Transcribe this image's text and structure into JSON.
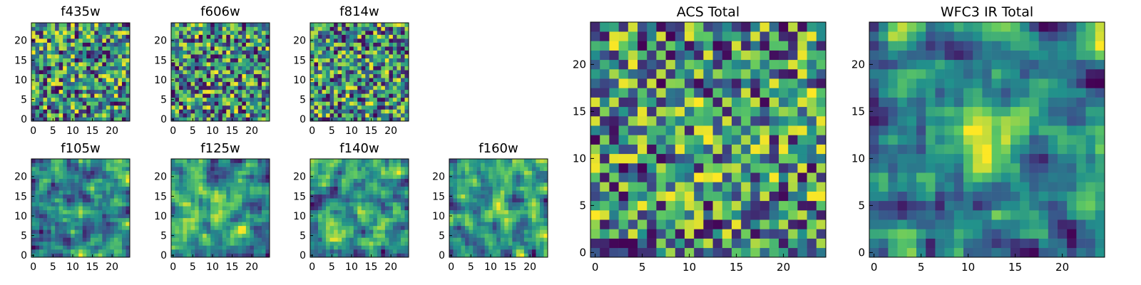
{
  "figure": {
    "colormap": "viridis",
    "colormap_stops": [
      "#440154",
      "#3b528b",
      "#21918c",
      "#5ec962",
      "#fde725"
    ]
  },
  "chart_data": [
    {
      "type": "heatmap",
      "title": "f435w",
      "xlim": [
        0,
        25
      ],
      "ylim": [
        0,
        25
      ],
      "grid_size": 25,
      "x_ticks": [
        0,
        5,
        10,
        15,
        20
      ],
      "y_ticks": [
        0,
        5,
        10,
        15,
        20
      ],
      "xlabel": "",
      "ylabel": "",
      "grid": false,
      "origin": "lower",
      "value_range": [
        0,
        1
      ],
      "smoothness": 0,
      "seed": 11,
      "hotspots": [],
      "darkspots": []
    },
    {
      "type": "heatmap",
      "title": "f606w",
      "xlim": [
        0,
        25
      ],
      "ylim": [
        0,
        25
      ],
      "grid_size": 25,
      "x_ticks": [
        0,
        5,
        10,
        15,
        20
      ],
      "y_ticks": [
        0,
        5,
        10,
        15,
        20
      ],
      "xlabel": "",
      "ylabel": "",
      "grid": false,
      "origin": "lower",
      "value_range": [
        0,
        1
      ],
      "smoothness": 0,
      "seed": 23,
      "hotspots": [
        [
          12,
          12,
          1.5,
          0.15
        ]
      ],
      "darkspots": []
    },
    {
      "type": "heatmap",
      "title": "f814w",
      "xlim": [
        0,
        25
      ],
      "ylim": [
        0,
        25
      ],
      "grid_size": 25,
      "x_ticks": [
        0,
        5,
        10,
        15,
        20
      ],
      "y_ticks": [
        0,
        5,
        10,
        15,
        20
      ],
      "xlabel": "",
      "ylabel": "",
      "grid": false,
      "origin": "lower",
      "value_range": [
        0,
        1
      ],
      "smoothness": 0,
      "seed": 37,
      "hotspots": [],
      "darkspots": []
    },
    {
      "type": "heatmap",
      "title": "f105w",
      "xlim": [
        0,
        25
      ],
      "ylim": [
        0,
        25
      ],
      "grid_size": 25,
      "x_ticks": [
        0,
        5,
        10,
        15,
        20
      ],
      "y_ticks": [
        0,
        5,
        10,
        15,
        20
      ],
      "xlabel": "",
      "ylabel": "",
      "grid": false,
      "origin": "lower",
      "value_range": [
        0,
        1
      ],
      "smoothness": 1,
      "seed": 41,
      "hotspots": [
        [
          13,
          10,
          2,
          0.25
        ],
        [
          23,
          22,
          2,
          0.2
        ]
      ],
      "darkspots": []
    },
    {
      "type": "heatmap",
      "title": "f125w",
      "xlim": [
        0,
        25
      ],
      "ylim": [
        0,
        25
      ],
      "grid_size": 25,
      "x_ticks": [
        0,
        5,
        10,
        15,
        20
      ],
      "y_ticks": [
        0,
        5,
        10,
        15,
        20
      ],
      "xlabel": "",
      "ylabel": "",
      "grid": false,
      "origin": "lower",
      "value_range": [
        0,
        1
      ],
      "smoothness": 1,
      "seed": 53,
      "hotspots": [
        [
          12,
          11,
          2,
          0.3
        ]
      ],
      "darkspots": []
    },
    {
      "type": "heatmap",
      "title": "f140w",
      "xlim": [
        0,
        25
      ],
      "ylim": [
        0,
        25
      ],
      "grid_size": 25,
      "x_ticks": [
        0,
        5,
        10,
        15,
        20
      ],
      "y_ticks": [
        0,
        5,
        10,
        15,
        20
      ],
      "xlabel": "",
      "ylabel": "",
      "grid": false,
      "origin": "lower",
      "value_range": [
        0,
        1
      ],
      "smoothness": 1,
      "seed": 67,
      "hotspots": [
        [
          3,
          20,
          2,
          0.25
        ]
      ],
      "darkspots": [
        [
          24,
          14,
          1,
          0.3
        ]
      ]
    },
    {
      "type": "heatmap",
      "title": "f160w",
      "xlim": [
        0,
        25
      ],
      "ylim": [
        0,
        25
      ],
      "grid_size": 25,
      "x_ticks": [
        0,
        5,
        10,
        15,
        20
      ],
      "y_ticks": [
        0,
        5,
        10,
        15,
        20
      ],
      "xlabel": "",
      "ylabel": "",
      "grid": false,
      "origin": "lower",
      "value_range": [
        0,
        1
      ],
      "smoothness": 1,
      "seed": 79,
      "hotspots": [
        [
          12,
          12,
          2,
          0.35
        ]
      ],
      "darkspots": [
        [
          24,
          14,
          1,
          0.3
        ]
      ]
    },
    {
      "type": "heatmap",
      "title": "ACS Total",
      "xlim": [
        0,
        25
      ],
      "ylim": [
        0,
        25
      ],
      "grid_size": 25,
      "x_ticks": [
        0,
        5,
        10,
        15,
        20
      ],
      "y_ticks": [
        0,
        5,
        10,
        15,
        20
      ],
      "xlabel": "",
      "ylabel": "",
      "grid": false,
      "origin": "lower",
      "value_range": [
        0,
        1
      ],
      "smoothness": 0,
      "seed": 97,
      "hotspots": [
        [
          12,
          12,
          1.5,
          0.2
        ]
      ],
      "darkspots": []
    },
    {
      "type": "heatmap",
      "title": "WFC3 IR Total",
      "xlim": [
        0,
        25
      ],
      "ylim": [
        0,
        25
      ],
      "grid_size": 25,
      "x_ticks": [
        0,
        5,
        10,
        15,
        20
      ],
      "y_ticks": [
        0,
        5,
        10,
        15,
        20
      ],
      "xlabel": "",
      "ylabel": "",
      "grid": false,
      "origin": "lower",
      "value_range": [
        0,
        1
      ],
      "smoothness": 1,
      "seed": 113,
      "hotspots": [
        [
          12,
          12,
          2.5,
          0.45
        ]
      ],
      "darkspots": [
        [
          4,
          5,
          1.5,
          0.3
        ],
        [
          17,
          10,
          1.5,
          0.25
        ],
        [
          16,
          0,
          1.5,
          0.3
        ],
        [
          21,
          14,
          1,
          0.25
        ]
      ]
    }
  ]
}
